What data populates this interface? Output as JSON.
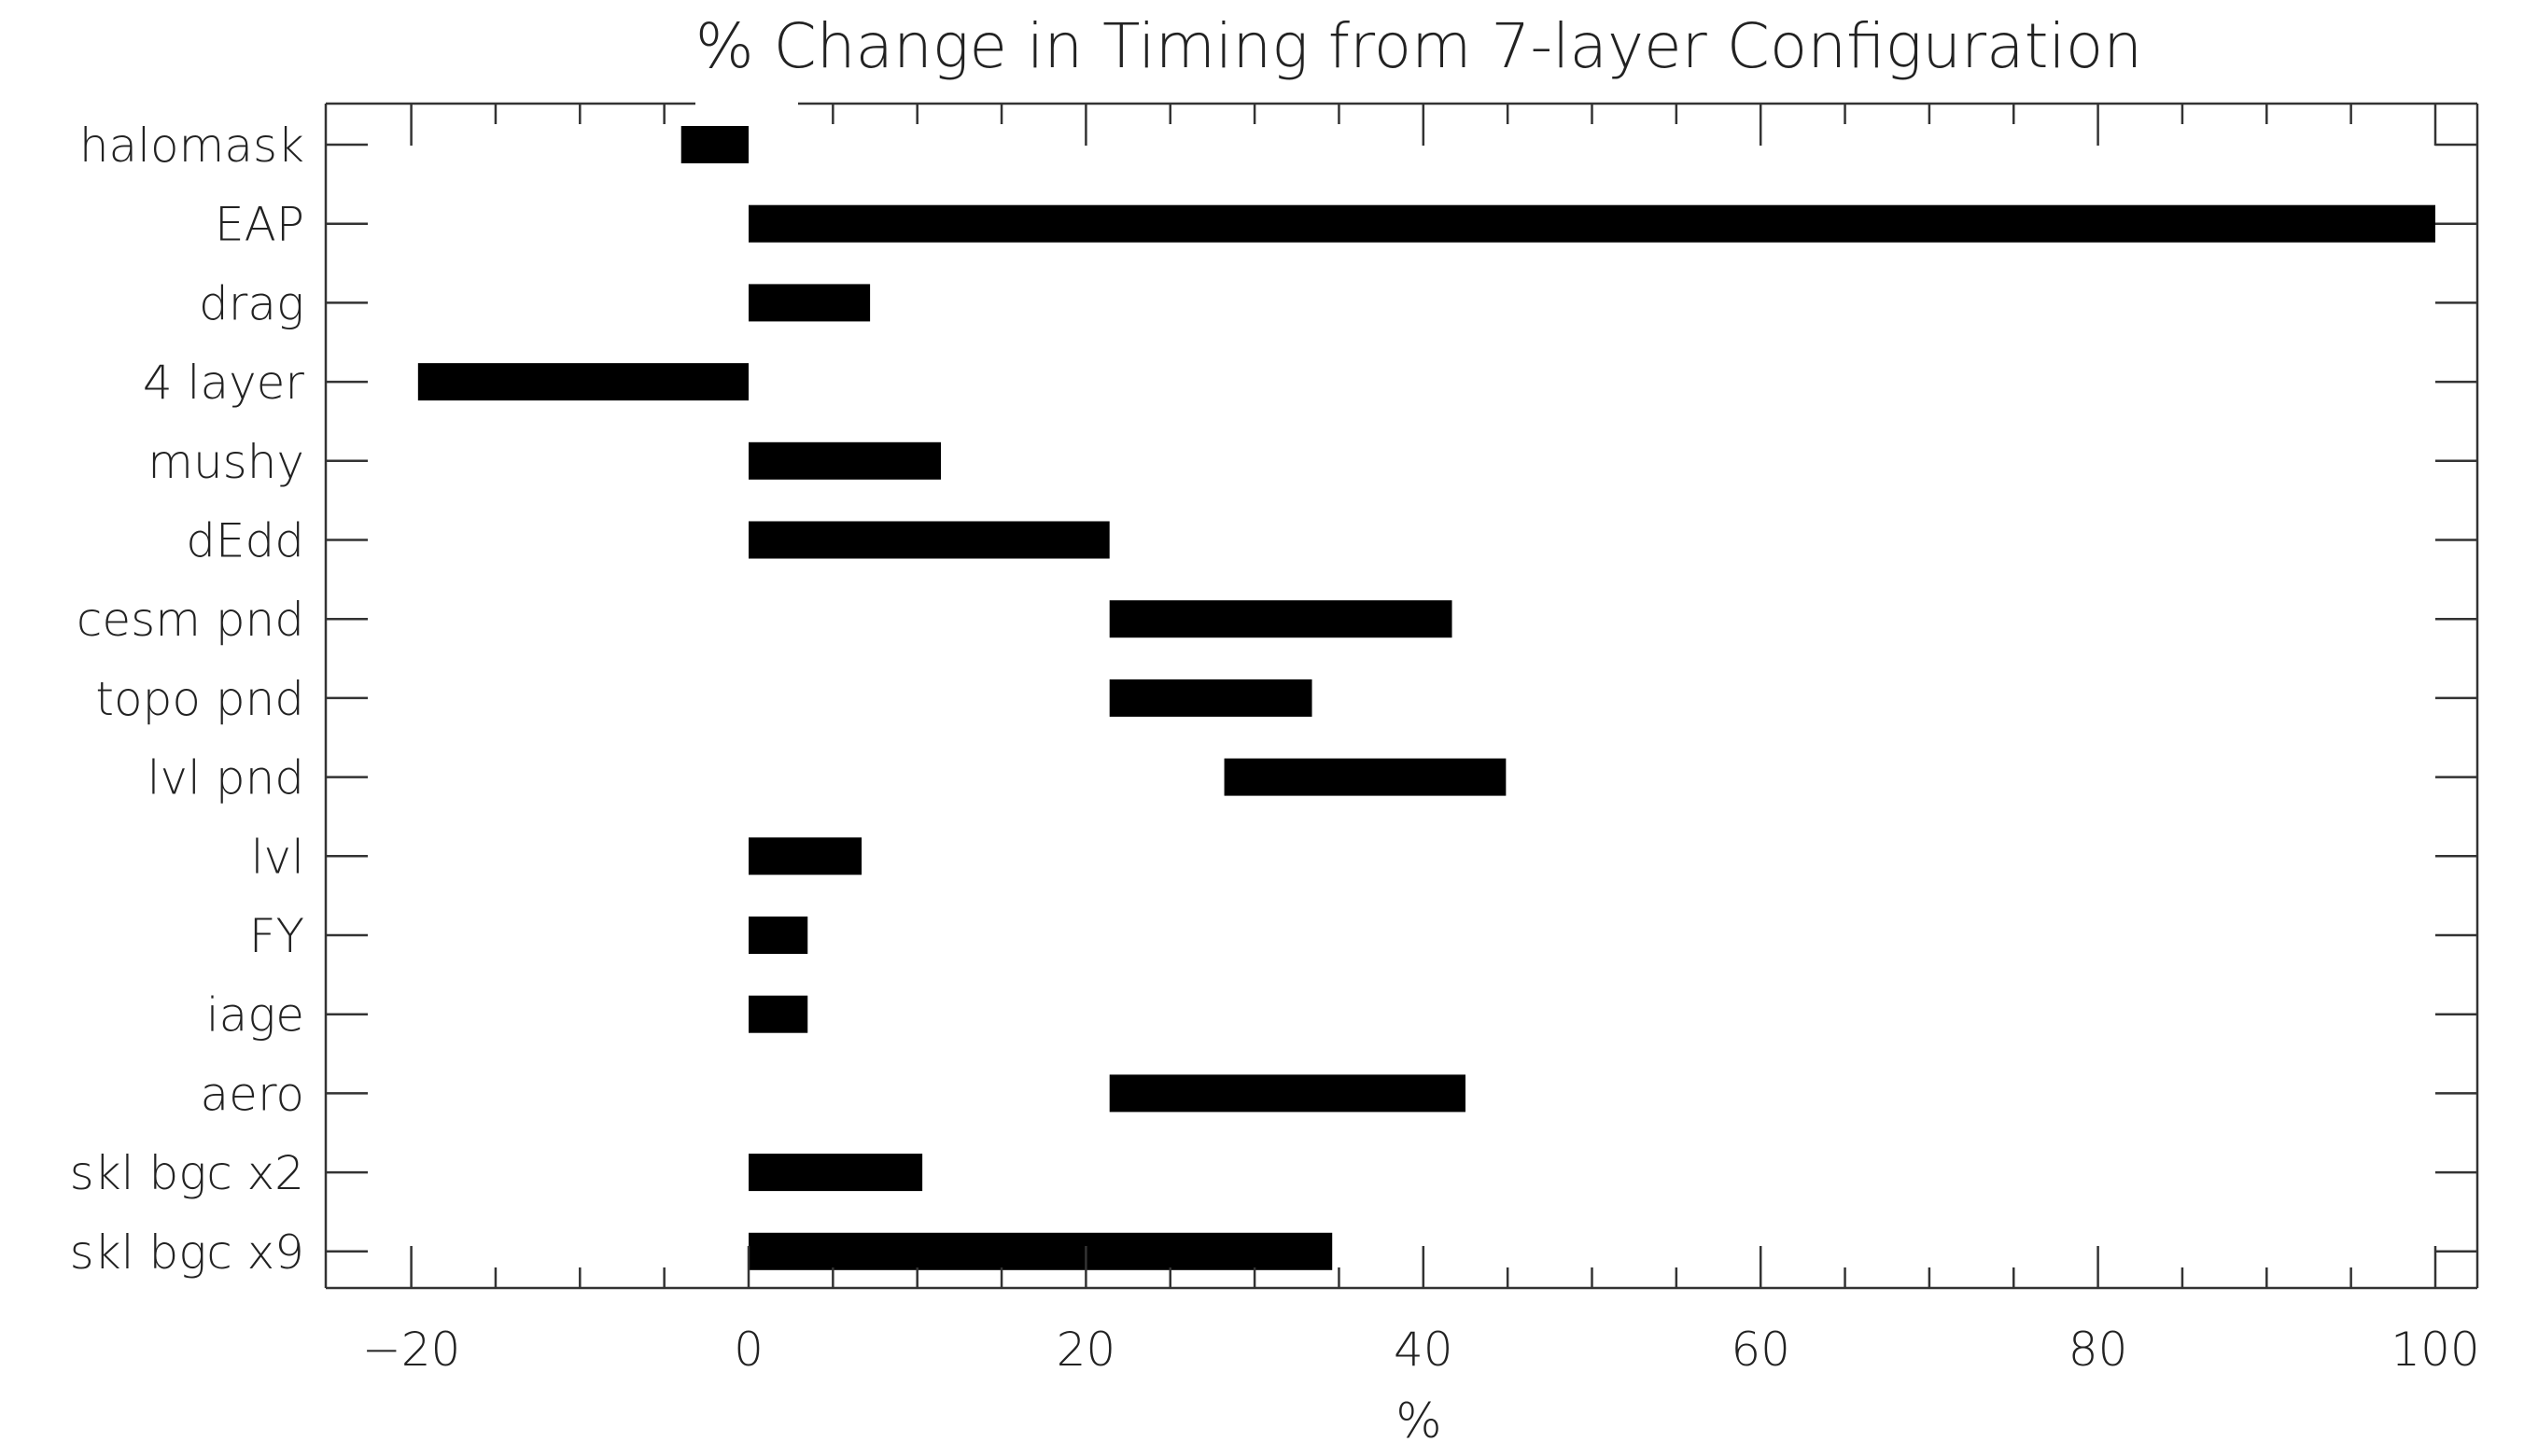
{
  "chart_data": {
    "type": "bar",
    "orientation": "horizontal",
    "title": "% Change in Timing from 7-layer Configuration",
    "xlabel": "%",
    "ylabel": "",
    "xlim": [
      -25,
      105
    ],
    "xticks": [
      -20,
      0,
      20,
      40,
      60,
      80,
      100
    ],
    "xtick_labels": [
      "-20",
      "0",
      "20",
      "40",
      "60",
      "80",
      "100"
    ],
    "categories": [
      "halomask",
      "EAP",
      "drag",
      "4 layer",
      "mushy",
      "dEdd",
      "cesm pnd",
      "topo pnd",
      "lvl pnd",
      "lvl",
      "FY",
      "iage",
      "aero",
      "skl bgc x2",
      "skl bgc x9"
    ],
    "bars": [
      {
        "start": 0,
        "end": -4
      },
      {
        "start": 0,
        "end": 100
      },
      {
        "start": 0,
        "end": 7.2
      },
      {
        "start": 0,
        "end": -19.6
      },
      {
        "start": 0,
        "end": 11.4
      },
      {
        "start": 0,
        "end": 21.4
      },
      {
        "start": 21.4,
        "end": 41.7
      },
      {
        "start": 21.4,
        "end": 33.4
      },
      {
        "start": 28.2,
        "end": 44.9
      },
      {
        "start": 0,
        "end": 6.7
      },
      {
        "start": 0,
        "end": 3.5
      },
      {
        "start": 0,
        "end": 3.5
      },
      {
        "start": 21.4,
        "end": 42.5
      },
      {
        "start": 0,
        "end": 10.3
      },
      {
        "start": 0,
        "end": 34.6
      }
    ],
    "bar_color": "#000000",
    "grid": false,
    "legend": "none"
  }
}
